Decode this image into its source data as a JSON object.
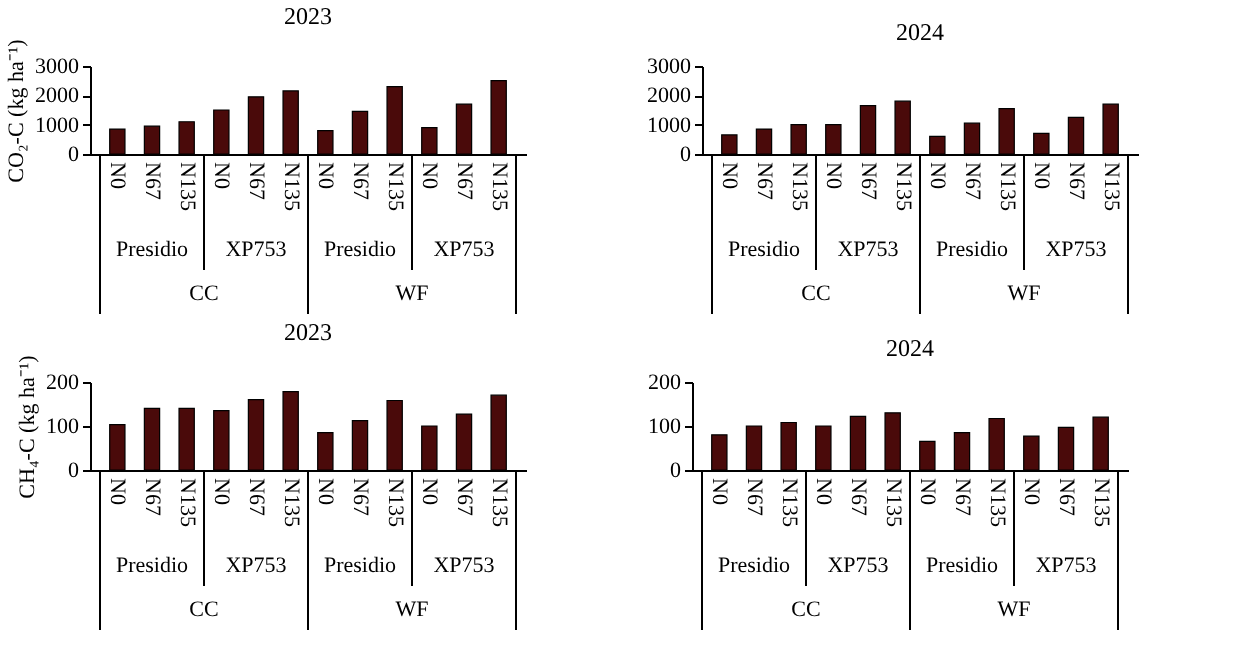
{
  "chart_data": [
    {
      "type": "bar",
      "title": "2023",
      "ylabel": "CO₂-C (kg ha⁻¹)",
      "categories": [
        "N0",
        "N67",
        "N135",
        "N0",
        "N67",
        "N135",
        "N0",
        "N67",
        "N135",
        "N0",
        "N67",
        "N135"
      ],
      "values": [
        850,
        950,
        1100,
        1500,
        1950,
        2150,
        800,
        1450,
        2300,
        900,
        1700,
        2500
      ],
      "color": "#4a0a0a",
      "ylim": [
        0,
        3000
      ],
      "yticks": [
        0,
        1000,
        2000,
        3000
      ],
      "grid": false,
      "annotations": [
        "Presidio",
        "XP753",
        "Presidio",
        "XP753",
        "CC",
        "WF"
      ]
    },
    {
      "type": "bar",
      "title": "2024",
      "categories": [
        "N0",
        "N67",
        "N135",
        "N0",
        "N67",
        "N135",
        "N0",
        "N67",
        "N135",
        "N0",
        "N67",
        "N135"
      ],
      "values": [
        650,
        850,
        1000,
        1000,
        1650,
        1800,
        600,
        1050,
        1550,
        700,
        1250,
        1700
      ],
      "color": "#4a0a0a",
      "ylim": [
        0,
        3000
      ],
      "yticks": [
        0,
        1000,
        2000,
        3000
      ],
      "grid": false,
      "annotations": [
        "Presidio",
        "XP753",
        "Presidio",
        "XP753",
        "CC",
        "WF"
      ]
    },
    {
      "type": "bar",
      "title": "2023",
      "ylabel": "CH₄-C (kg ha⁻¹)",
      "categories": [
        "N0",
        "N67",
        "N135",
        "N0",
        "N67",
        "N135",
        "N0",
        "N67",
        "N135",
        "N0",
        "N67",
        "N135"
      ],
      "values": [
        103,
        140,
        140,
        135,
        160,
        178,
        85,
        112,
        158,
        100,
        127,
        170
      ],
      "color": "#4a0a0a",
      "ylim": [
        0,
        200
      ],
      "yticks": [
        0,
        100,
        200
      ],
      "grid": false,
      "annotations": [
        "Presidio",
        "XP753",
        "Presidio",
        "XP753",
        "CC",
        "WF"
      ]
    },
    {
      "type": "bar",
      "title": "2024",
      "categories": [
        "N0",
        "N67",
        "N135",
        "N0",
        "N67",
        "N135",
        "N0",
        "N67",
        "N135",
        "N0",
        "N67",
        "N135"
      ],
      "values": [
        80,
        100,
        108,
        100,
        122,
        130,
        65,
        85,
        117,
        77,
        97,
        120
      ],
      "color": "#4a0a0a",
      "ylim": [
        0,
        200
      ],
      "yticks": [
        0,
        100,
        200
      ],
      "grid": false,
      "annotations": [
        "Presidio",
        "XP753",
        "Presidio",
        "XP753",
        "CC",
        "WF"
      ]
    }
  ]
}
